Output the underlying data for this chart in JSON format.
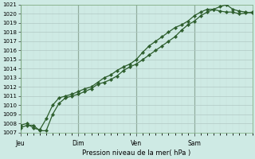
{
  "xlabel": "Pression niveau de la mer( hPa )",
  "bg_color": "#ceeae4",
  "grid_major_color": "#b0c8c4",
  "grid_minor_color": "#c8deda",
  "line_color": "#2d5e2d",
  "vline_color": "#4a6e4a",
  "ylim": [
    1007,
    1021
  ],
  "yticks": [
    1007,
    1008,
    1009,
    1010,
    1011,
    1012,
    1013,
    1014,
    1015,
    1016,
    1017,
    1018,
    1019,
    1020,
    1021
  ],
  "day_labels": [
    "Jeu",
    "Dim",
    "Ven",
    "Sam"
  ],
  "day_positions": [
    0,
    54,
    108,
    162
  ],
  "total_points": 216,
  "series1_x": [
    0,
    6,
    12,
    18,
    24,
    30,
    36,
    42,
    48,
    54,
    60,
    66,
    72,
    78,
    84,
    90,
    96,
    102,
    108,
    114,
    120,
    126,
    132,
    138,
    144,
    150,
    156,
    162,
    168,
    174,
    180,
    186,
    192,
    198,
    204,
    210,
    216
  ],
  "series1_y": [
    1007.5,
    1007.8,
    1007.8,
    1007.2,
    1007.2,
    1009.0,
    1010.2,
    1010.8,
    1011.0,
    1011.2,
    1011.5,
    1011.8,
    1012.3,
    1012.5,
    1012.8,
    1013.2,
    1013.8,
    1014.2,
    1014.5,
    1015.0,
    1015.5,
    1016.0,
    1016.5,
    1017.0,
    1017.5,
    1018.2,
    1018.8,
    1019.2,
    1019.8,
    1020.2,
    1020.5,
    1020.8,
    1021.0,
    1020.5,
    1020.3,
    1020.2,
    1020.1
  ],
  "series2_x": [
    0,
    6,
    12,
    18,
    24,
    30,
    36,
    42,
    48,
    54,
    60,
    66,
    72,
    78,
    84,
    90,
    96,
    102,
    108,
    114,
    120,
    126,
    132,
    138,
    144,
    150,
    156,
    162,
    168,
    174,
    180,
    186,
    192,
    198,
    204,
    210,
    216
  ],
  "series2_y": [
    1007.8,
    1008.0,
    1007.5,
    1007.3,
    1008.5,
    1010.0,
    1010.8,
    1011.0,
    1011.2,
    1011.5,
    1011.8,
    1012.0,
    1012.5,
    1013.0,
    1013.3,
    1013.8,
    1014.2,
    1014.5,
    1015.0,
    1015.8,
    1016.5,
    1017.0,
    1017.5,
    1018.0,
    1018.5,
    1018.8,
    1019.2,
    1019.8,
    1020.2,
    1020.5,
    1020.5,
    1020.3,
    1020.2,
    1020.2,
    1020.0,
    1020.1,
    1020.2
  ]
}
